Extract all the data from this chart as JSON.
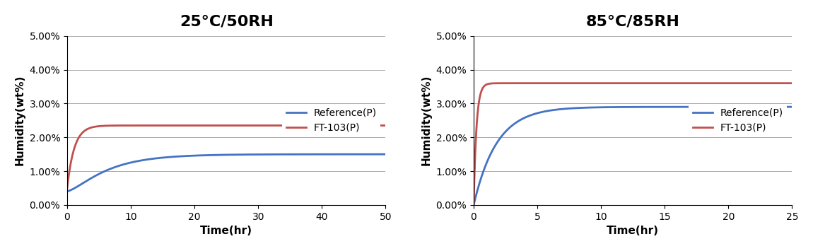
{
  "chart1": {
    "title": "25°C/50RH",
    "xlabel": "Time(hr)",
    "ylabel": "Humidity(wt%)",
    "xlim": [
      0,
      50
    ],
    "ylim": [
      0,
      0.05
    ],
    "xticks": [
      0,
      10,
      20,
      30,
      40,
      50
    ],
    "yticks": [
      0.0,
      0.01,
      0.02,
      0.03,
      0.04,
      0.05
    ],
    "ref_color": "#4472C4",
    "ft_color": "#C0504D",
    "ref_label": "Reference(P)",
    "ft_label": "FT-103(P)",
    "ref_saturation": 0.015,
    "ref_rate": 0.18,
    "ft_saturation": 0.0235,
    "ft_rate": 0.9,
    "ft_init": 0.005
  },
  "chart2": {
    "title": "85°C/85RH",
    "xlabel": "Time(hr)",
    "ylabel": "Humidity(wt%)",
    "xlim": [
      0,
      25
    ],
    "ylim": [
      0,
      0.05
    ],
    "xticks": [
      0,
      5,
      10,
      15,
      20,
      25
    ],
    "yticks": [
      0.0,
      0.01,
      0.02,
      0.03,
      0.04,
      0.05
    ],
    "ref_color": "#4472C4",
    "ft_color": "#C0504D",
    "ref_label": "Reference(P)",
    "ft_label": "FT-103(P)",
    "ref_saturation": 0.029,
    "ref_rate": 0.55,
    "ft_saturation": 0.036,
    "ft_rate": 4.5,
    "ft_init": 0.0
  },
  "bg_color": "#FFFFFF",
  "grid_color": "#AAAAAA",
  "title_fontsize": 16,
  "label_fontsize": 11,
  "tick_fontsize": 10,
  "legend_fontsize": 10,
  "line_width": 2.0
}
